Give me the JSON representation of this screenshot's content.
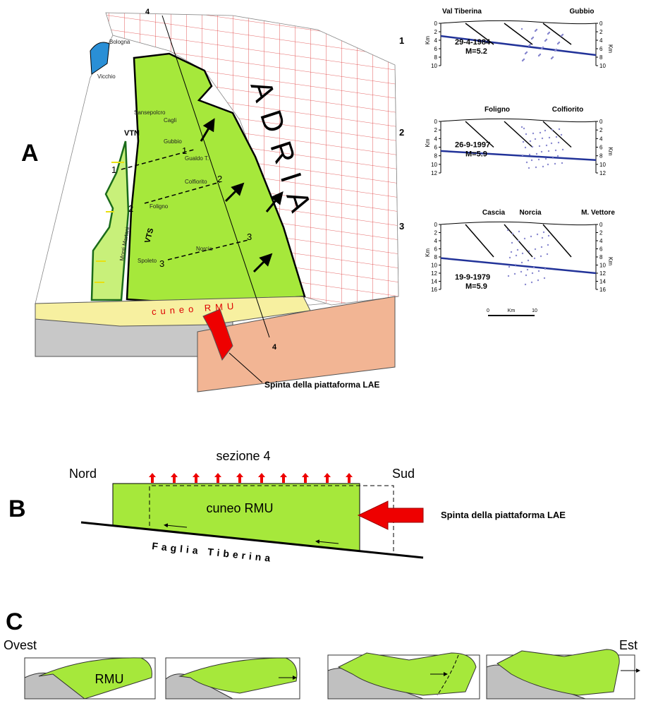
{
  "panel_a": {
    "letter": "A",
    "region": "ADRIA",
    "section_line": "4",
    "towns": [
      "Bologna",
      "Vicchio",
      "Sansepolcro",
      "Cagli",
      "Gubbio",
      "Gualdo T.",
      "Colfiorito",
      "Foligno",
      "Monti Martani",
      "Spoleto",
      "Norcia"
    ],
    "faults": [
      "VTN",
      "VTS"
    ],
    "trace_labels": [
      "1",
      "2",
      "3"
    ],
    "wedge": "cuneo RMU",
    "push": "Spinta della piattaforma LAE",
    "sections": [
      {
        "number": "1",
        "places": [
          "Val Tiberina",
          "Gubbio"
        ],
        "date": "29-4-1984",
        "magnitude": "M=5.2",
        "depth_unit": "Km",
        "depth_ticks": [
          0,
          2,
          4,
          6,
          8,
          10
        ]
      },
      {
        "number": "2",
        "places": [
          "Foligno",
          "Colfiorito"
        ],
        "date": "26-9-1997",
        "magnitude": "M=5.9",
        "depth_unit": "Km",
        "depth_ticks": [
          0,
          2,
          4,
          6,
          8,
          10,
          12
        ]
      },
      {
        "number": "3",
        "places": [
          "Cascia",
          "Norcia",
          "M. Vettore"
        ],
        "date": "19-9-1979",
        "magnitude": "M=5.9",
        "depth_unit": "Km",
        "depth_ticks": [
          0,
          2,
          4,
          6,
          8,
          10,
          12,
          14,
          16
        ]
      }
    ],
    "scale_bar": {
      "start": 0,
      "unit": "Km",
      "end": 10
    }
  },
  "panel_b": {
    "letter": "B",
    "north": "Nord",
    "title": "sezione 4",
    "south": "Sud",
    "wedge": "cuneo RMU",
    "push": "Spinta della piattaforma LAE",
    "fault": "Faglia Tiberina"
  },
  "panel_c": {
    "letter": "C",
    "west": "Ovest",
    "east": "Est",
    "unit": "RMU"
  }
}
